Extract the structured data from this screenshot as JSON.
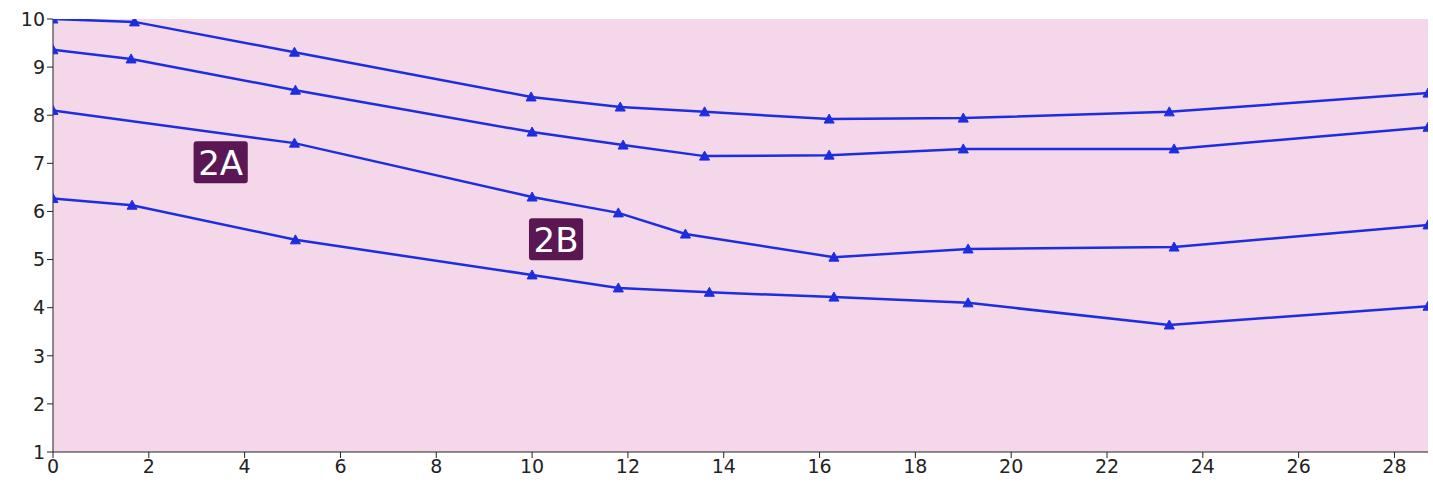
{
  "chart_data": {
    "type": "line",
    "xlim": [
      0,
      28.7
    ],
    "xticks": [
      0,
      2,
      4,
      6,
      8,
      10,
      12,
      14,
      16,
      18,
      20,
      22,
      24,
      26,
      28
    ],
    "ylim": [
      1,
      10
    ],
    "yticks": [
      1,
      2,
      3,
      4,
      5,
      6,
      7,
      8,
      9,
      10
    ],
    "grid": false,
    "marker": "triangle",
    "series": [
      {
        "color": "#1c2ee0",
        "x": [
          0,
          1.7,
          5.04,
          9.98,
          11.84,
          13.6,
          16.2,
          19.0,
          23.3,
          28.7
        ],
        "values": [
          10.0,
          9.94,
          9.31,
          8.38,
          8.17,
          8.07,
          7.92,
          7.94,
          8.07,
          8.46
        ]
      },
      {
        "color": "#1c2ee0",
        "x": [
          0,
          1.63,
          5.06,
          10.0,
          11.9,
          13.6,
          16.2,
          19.0,
          23.4,
          28.7
        ],
        "values": [
          9.36,
          9.17,
          8.52,
          7.65,
          7.38,
          7.15,
          7.17,
          7.3,
          7.3,
          7.75
        ]
      },
      {
        "color": "#1c2ee0",
        "x": [
          0,
          5.04,
          10.0,
          11.8,
          13.2,
          16.3,
          19.1,
          23.4,
          28.7
        ],
        "values": [
          8.1,
          7.42,
          6.3,
          5.97,
          5.53,
          5.05,
          5.22,
          5.26,
          5.72
        ]
      },
      {
        "color": "#1c2ee0",
        "x": [
          0,
          1.65,
          5.06,
          10.0,
          11.8,
          13.7,
          16.3,
          19.1,
          23.3,
          28.7
        ],
        "values": [
          6.27,
          6.13,
          5.41,
          4.68,
          4.41,
          4.32,
          4.22,
          4.1,
          3.64,
          4.03
        ]
      }
    ],
    "annotations": [
      {
        "text": "2A",
        "x": 3.5,
        "y": 7.0
      },
      {
        "text": "2B",
        "x": 10.5,
        "y": 5.4
      }
    ]
  }
}
